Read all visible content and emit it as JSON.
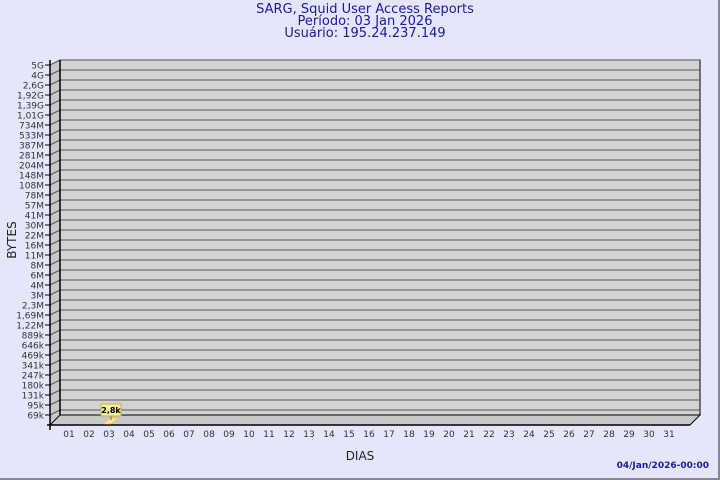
{
  "chart_data": {
    "type": "bar",
    "title": "SARG, Squid User Access Reports",
    "subtitle": [
      "Período: 03 Jan 2026",
      "Usuário: 195.24.237.149"
    ],
    "xlabel": "DIAS",
    "ylabel": "BYTES",
    "categories": [
      "01",
      "02",
      "03",
      "04",
      "05",
      "06",
      "07",
      "08",
      "09",
      "10",
      "11",
      "12",
      "13",
      "14",
      "15",
      "16",
      "17",
      "18",
      "19",
      "20",
      "21",
      "22",
      "23",
      "24",
      "25",
      "26",
      "27",
      "28",
      "29",
      "30",
      "31"
    ],
    "y_ticks": [
      "5G",
      "4G",
      "2,6G",
      "1,92G",
      "1,39G",
      "1,01G",
      "734M",
      "533M",
      "387M",
      "281M",
      "204M",
      "148M",
      "108M",
      "78M",
      "57M",
      "41M",
      "30M",
      "22M",
      "16M",
      "11M",
      "8M",
      "6M",
      "4M",
      "3M",
      "2,3M",
      "1,69M",
      "1,22M",
      "889k",
      "646k",
      "469k",
      "341k",
      "247k",
      "180k",
      "131k",
      "95k",
      "69k"
    ],
    "y_scale": "log",
    "grid": true,
    "series": [
      {
        "values": [
          null,
          null,
          2800,
          null,
          null,
          null,
          null,
          null,
          null,
          null,
          null,
          null,
          null,
          null,
          null,
          null,
          null,
          null,
          null,
          null,
          null,
          null,
          null,
          null,
          null,
          null,
          null,
          null,
          null,
          null,
          null
        ],
        "data_labels": {
          "03": "2,8k"
        }
      }
    ],
    "colors": {
      "wall": "#d3d3d3",
      "grid": "#555555",
      "bar": "#ffe680",
      "label_bg": "#f5f0a0",
      "text": "#1a1aa0"
    }
  },
  "footer": "04/Jan/2026-00:00"
}
